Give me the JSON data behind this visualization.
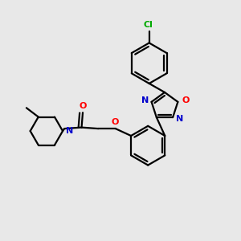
{
  "bg_color": "#e8e8e8",
  "bond_color": "#000000",
  "atom_colors": {
    "N": "#0000cc",
    "O": "#ff0000",
    "Cl": "#00aa00",
    "C": "#000000"
  }
}
